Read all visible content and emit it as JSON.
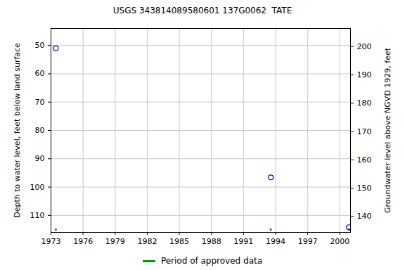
{
  "chart_data": {
    "type": "scatter",
    "title": "USGS 343814089580601 137G0062  TATE",
    "y_label": "Depth to water level, feet below land surface",
    "y2_label": "Groundwater level above NGVD 1929, feet",
    "x": [
      1973.45,
      1993.55,
      2000.85
    ],
    "values": [
      51,
      96.6,
      114.2
    ],
    "color": "#0000cc",
    "marker": "circle-open",
    "xlim": [
      1973,
      2001
    ],
    "xticks": [
      1973,
      1976,
      1979,
      1982,
      1985,
      1988,
      1991,
      1994,
      1997,
      2000
    ],
    "ylim": [
      44,
      116
    ],
    "yticks": [
      50,
      60,
      70,
      80,
      90,
      100,
      110
    ],
    "y2lim": [
      206.4,
      134.4
    ],
    "y2ticks": [
      140,
      150,
      160,
      170,
      180,
      190,
      200
    ],
    "grid": true,
    "approved_periods": {
      "name": "Period of approved data",
      "color": "#009900",
      "x": [
        1973.45,
        1993.55,
        2000.85
      ]
    }
  }
}
